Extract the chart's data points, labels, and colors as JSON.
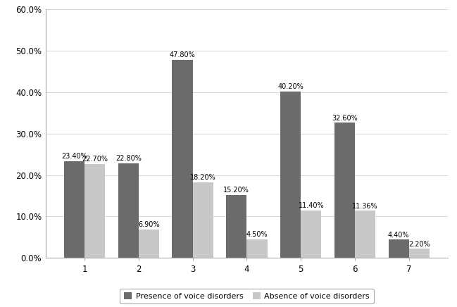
{
  "categories": [
    1,
    2,
    3,
    4,
    5,
    6,
    7
  ],
  "presence_values": [
    23.4,
    22.8,
    47.8,
    15.2,
    40.2,
    32.6,
    4.4
  ],
  "absence_values": [
    22.7,
    6.9,
    18.2,
    4.5,
    11.4,
    11.36,
    2.2
  ],
  "presence_labels": [
    "23.40%",
    "22.80%",
    "47.80%",
    "15.20%",
    "40.20%",
    "32.60%",
    "4.40%"
  ],
  "absence_labels": [
    "22.70%",
    "6.90%",
    "18.20%",
    "4.50%",
    "11.40%",
    "11.36%",
    "2.20%"
  ],
  "presence_color": "#6b6b6b",
  "absence_color": "#c8c8c8",
  "ylim": [
    0,
    60
  ],
  "yticks": [
    0,
    10,
    20,
    30,
    40,
    50,
    60
  ],
  "ytick_labels": [
    "0.0%",
    "10.0%",
    "20.0%",
    "30.0%",
    "40.0%",
    "50.0%",
    "60.0%"
  ],
  "legend_presence": "Presence of voice disorders",
  "legend_absence": "Absence of voice disorders",
  "bar_width": 0.38,
  "label_fontsize": 7.0,
  "tick_fontsize": 8.5,
  "legend_fontsize": 8.0
}
